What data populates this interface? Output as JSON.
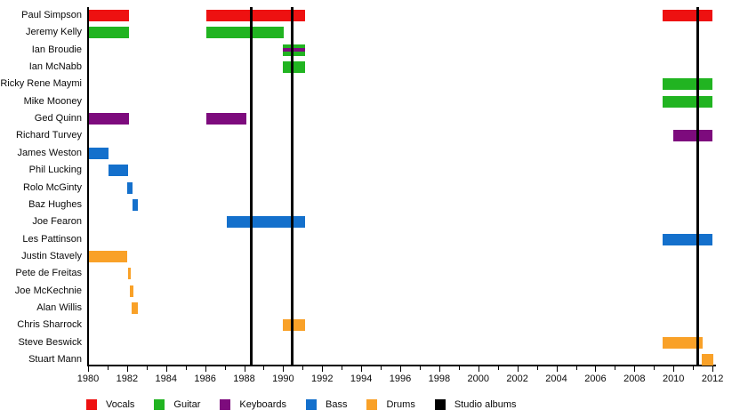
{
  "chart_data": {
    "type": "bar",
    "subtype": "band-members-timeline",
    "title": "",
    "xlabel": "",
    "ylabel": "",
    "x_axis": {
      "min": 1980,
      "max": 2012,
      "tick_interval": 1,
      "label_interval": 2,
      "tick_labels": [
        "1980",
        "1982",
        "1984",
        "1986",
        "1988",
        "1990",
        "1992",
        "1994",
        "1996",
        "1998",
        "2000",
        "2002",
        "2004",
        "2006",
        "2008",
        "2010",
        "2012"
      ]
    },
    "members": [
      {
        "name": "Paul Simpson",
        "role": "Vocals",
        "periods": [
          [
            1980.05,
            1982.1
          ],
          [
            1986.05,
            1991.1
          ],
          [
            2009.45,
            2012.0
          ]
        ]
      },
      {
        "name": "Jeremy Kelly",
        "role": "Guitar",
        "periods": [
          [
            1980.05,
            1982.1
          ],
          [
            1986.05,
            1990.05
          ]
        ]
      },
      {
        "name": "Ian Broudie",
        "role": "Guitar",
        "secondary_role": "Keyboards",
        "periods": [
          [
            1990.0,
            1991.1
          ]
        ]
      },
      {
        "name": "Ian McNabb",
        "role": "Guitar",
        "periods": [
          [
            1990.0,
            1991.1
          ]
        ]
      },
      {
        "name": "Ricky Rene Maymi",
        "role": "Guitar",
        "periods": [
          [
            2009.45,
            2012.0
          ]
        ]
      },
      {
        "name": "Mike Mooney",
        "role": "Guitar",
        "periods": [
          [
            2009.45,
            2012.0
          ]
        ]
      },
      {
        "name": "Ged Quinn",
        "role": "Keyboards",
        "periods": [
          [
            1980.05,
            1982.1
          ],
          [
            1986.05,
            1988.1
          ]
        ]
      },
      {
        "name": "Richard Turvey",
        "role": "Keyboards",
        "periods": [
          [
            2010.0,
            2012.0
          ]
        ]
      },
      {
        "name": "James Weston",
        "role": "Bass",
        "periods": [
          [
            1980.05,
            1981.05
          ]
        ]
      },
      {
        "name": "Phil Lucking",
        "role": "Bass",
        "periods": [
          [
            1981.05,
            1982.05
          ]
        ]
      },
      {
        "name": "Rolo McGinty",
        "role": "Bass",
        "periods": [
          [
            1982.0,
            1982.28
          ]
        ]
      },
      {
        "name": "Baz Hughes",
        "role": "Bass",
        "periods": [
          [
            1982.28,
            1982.56
          ]
        ]
      },
      {
        "name": "Joe Fearon",
        "role": "Bass",
        "periods": [
          [
            1987.1,
            1991.1
          ]
        ]
      },
      {
        "name": "Les Pattinson",
        "role": "Bass",
        "periods": [
          [
            2009.45,
            2012.0
          ]
        ]
      },
      {
        "name": "Justin Stavely",
        "role": "Drums",
        "periods": [
          [
            1980.05,
            1982.02
          ]
        ]
      },
      {
        "name": "Pete de Freitas",
        "role": "Drums",
        "periods": [
          [
            1982.05,
            1982.2
          ]
        ]
      },
      {
        "name": "Joe McKechnie",
        "role": "Drums",
        "periods": [
          [
            1982.15,
            1982.32
          ]
        ]
      },
      {
        "name": "Alan Willis",
        "role": "Drums",
        "periods": [
          [
            1982.25,
            1982.56
          ]
        ]
      },
      {
        "name": "Chris Sharrock",
        "role": "Drums",
        "periods": [
          [
            1990.0,
            1991.1
          ]
        ]
      },
      {
        "name": "Steve Beswick",
        "role": "Drums",
        "periods": [
          [
            2009.45,
            2011.5
          ]
        ]
      },
      {
        "name": "Stuart Mann",
        "role": "Drums",
        "periods": [
          [
            2011.45,
            2012.05
          ]
        ]
      }
    ],
    "album_release_lines": [
      1988.35,
      1990.45,
      2011.25
    ],
    "legend": [
      {
        "label": "Vocals",
        "color_key": "Vocals"
      },
      {
        "label": "Guitar",
        "color_key": "Guitar"
      },
      {
        "label": "Keyboards",
        "color_key": "Keyboards"
      },
      {
        "label": "Bass",
        "color_key": "Bass"
      },
      {
        "label": "Drums",
        "color_key": "Drums"
      },
      {
        "label": "Studio albums",
        "color_key": "Studio albums"
      }
    ],
    "colors": {
      "Vocals": "#ee1111",
      "Guitar": "#21b421",
      "Keyboards": "#7d0b7d",
      "Bass": "#1470cc",
      "Drums": "#f9a128",
      "Studio albums": "#000000"
    },
    "layout_hints": {
      "grid": false,
      "legend_position": "bottom",
      "album_lines_span_full_height": true
    }
  }
}
